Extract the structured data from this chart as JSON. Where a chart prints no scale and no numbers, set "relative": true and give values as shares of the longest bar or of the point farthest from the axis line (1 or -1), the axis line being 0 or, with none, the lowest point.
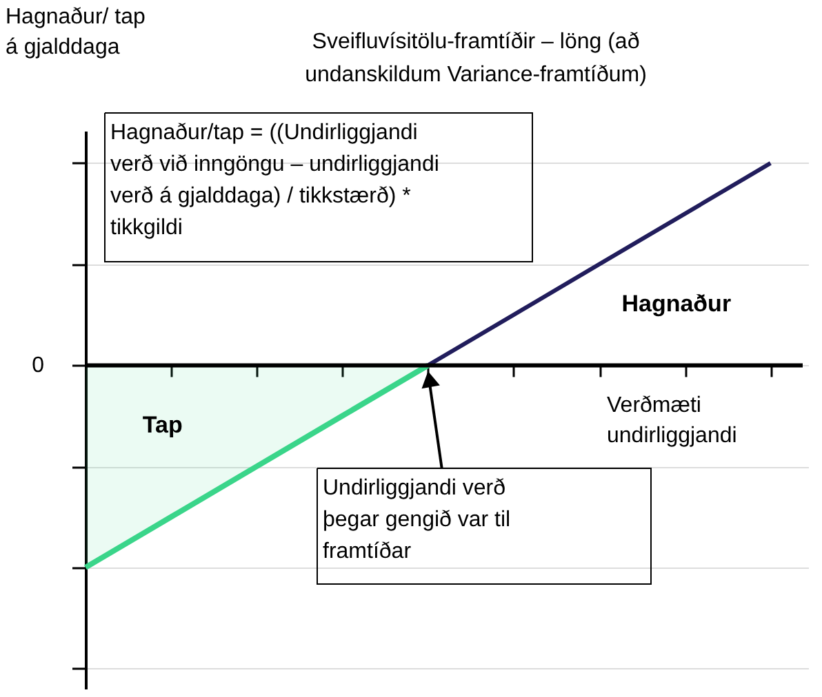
{
  "chart_data": {
    "type": "line",
    "relative": true,
    "title": "Sveifluvísitölu-framtíðir – löng (að undanskildum Variance-framtíðum)",
    "xlabel": "Verðmæti undirliggjandi",
    "ylabel": "Hagnaður/ tap á gjalddaga",
    "categories": [
      null,
      null,
      null,
      null,
      null,
      null,
      null,
      null,
      null
    ],
    "series": [
      {
        "name": "Tap",
        "type": "area",
        "color": "#3ad58a",
        "values": [
          -1,
          -0.75,
          -0.5,
          -0.25,
          0,
          null,
          null,
          null,
          null
        ]
      },
      {
        "name": "Hagnaður",
        "color": "#211d5c",
        "values": [
          null,
          null,
          null,
          null,
          0,
          0.25,
          0.5,
          0.75,
          1
        ]
      }
    ],
    "ref_lines": [
      {
        "axis": "y",
        "value": 0,
        "label": "0"
      }
    ],
    "annotations": [
      "Hagnaður/tap = ((Undirliggjandi verð við inngöngu – undirliggjandi verð á gjalddaga) / tikkstærð) * tikkgildi",
      "Undirliggjandi verð þegar gengið var til framtíðar"
    ],
    "grid": "y"
  }
}
